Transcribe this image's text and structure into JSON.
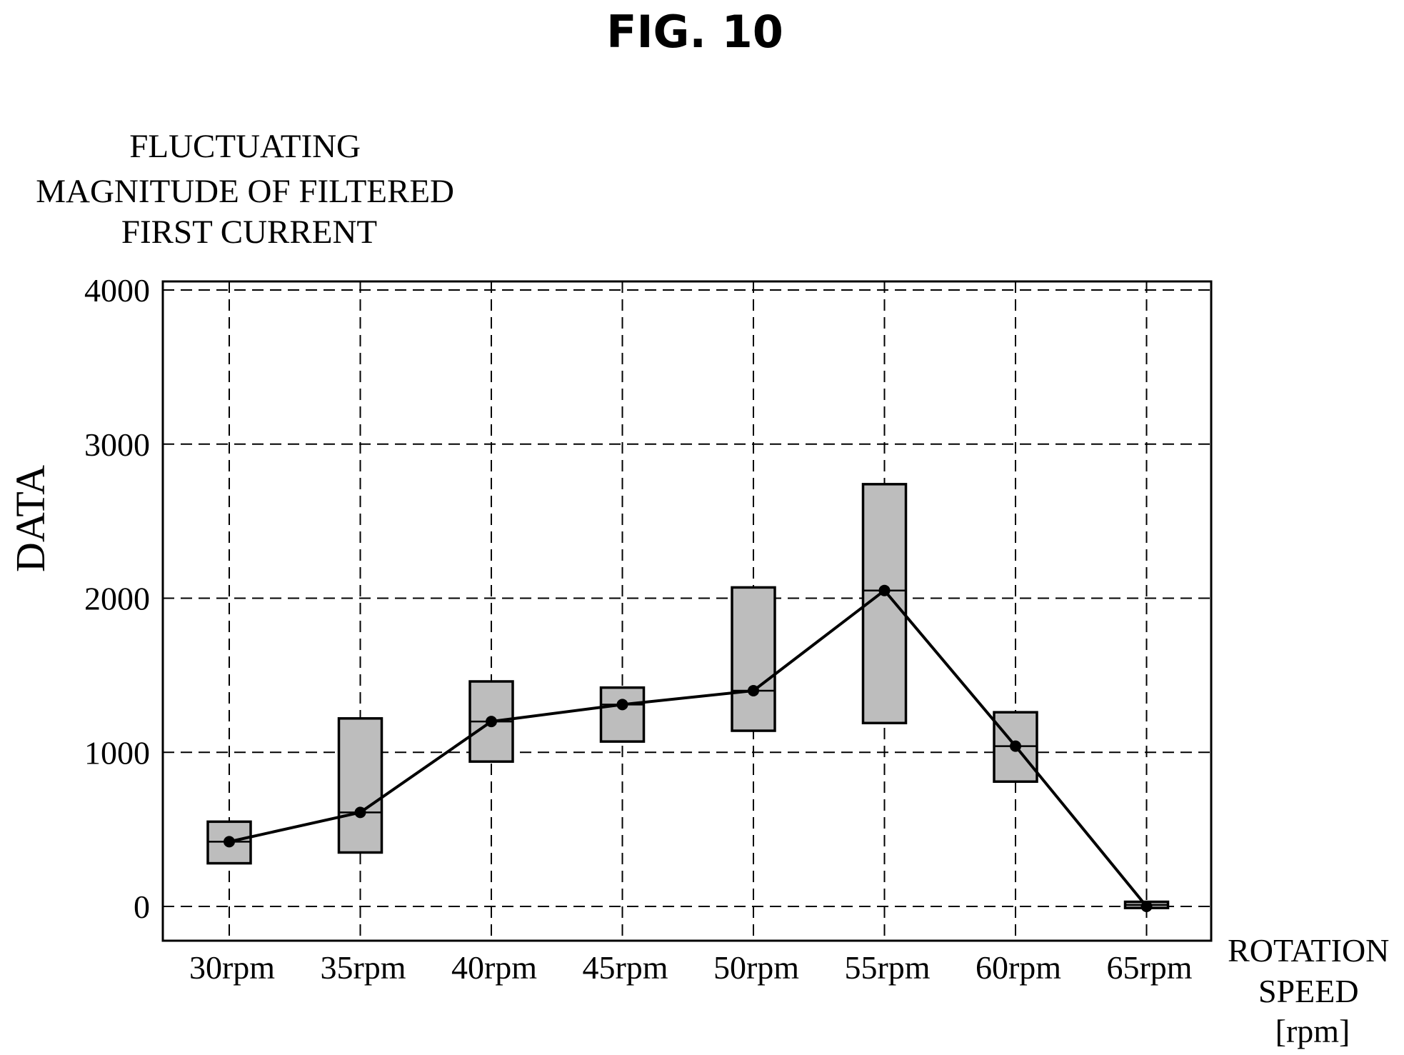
{
  "figure": {
    "label": "FIG. 10"
  },
  "chart_data": {
    "type": "box",
    "y_title_lines": [
      "FLUCTUATING",
      "MAGNITUDE OF FILTERED",
      "FIRST CURRENT"
    ],
    "ylabel": "DATA",
    "x_title_lines": [
      "ROTATION",
      "SPEED",
      "[rpm]"
    ],
    "categories": [
      "30rpm",
      "35rpm",
      "40rpm",
      "45rpm",
      "50rpm",
      "55rpm",
      "60rpm",
      "65rpm"
    ],
    "yticks": [
      "0",
      "1000",
      "2000",
      "3000",
      "4000"
    ],
    "ylim": [
      -230,
      4070
    ],
    "grid": true,
    "boxes": [
      {
        "low": 280,
        "median": 420,
        "high": 550
      },
      {
        "low": 350,
        "median": 610,
        "high": 1220
      },
      {
        "low": 940,
        "median": 1200,
        "high": 1460
      },
      {
        "low": 1070,
        "median": 1310,
        "high": 1420
      },
      {
        "low": 1140,
        "median": 1400,
        "high": 2070
      },
      {
        "low": 1190,
        "median": 2050,
        "high": 2740
      },
      {
        "low": 810,
        "median": 1040,
        "high": 1260
      },
      {
        "low": -10,
        "median": 10,
        "high": 30
      }
    ],
    "series": [
      {
        "values": [
          420,
          610,
          1200,
          1310,
          1400,
          2050,
          1040,
          0
        ]
      }
    ],
    "colors": {
      "box_fill": "#bdbdbd",
      "line": "#000000"
    }
  }
}
